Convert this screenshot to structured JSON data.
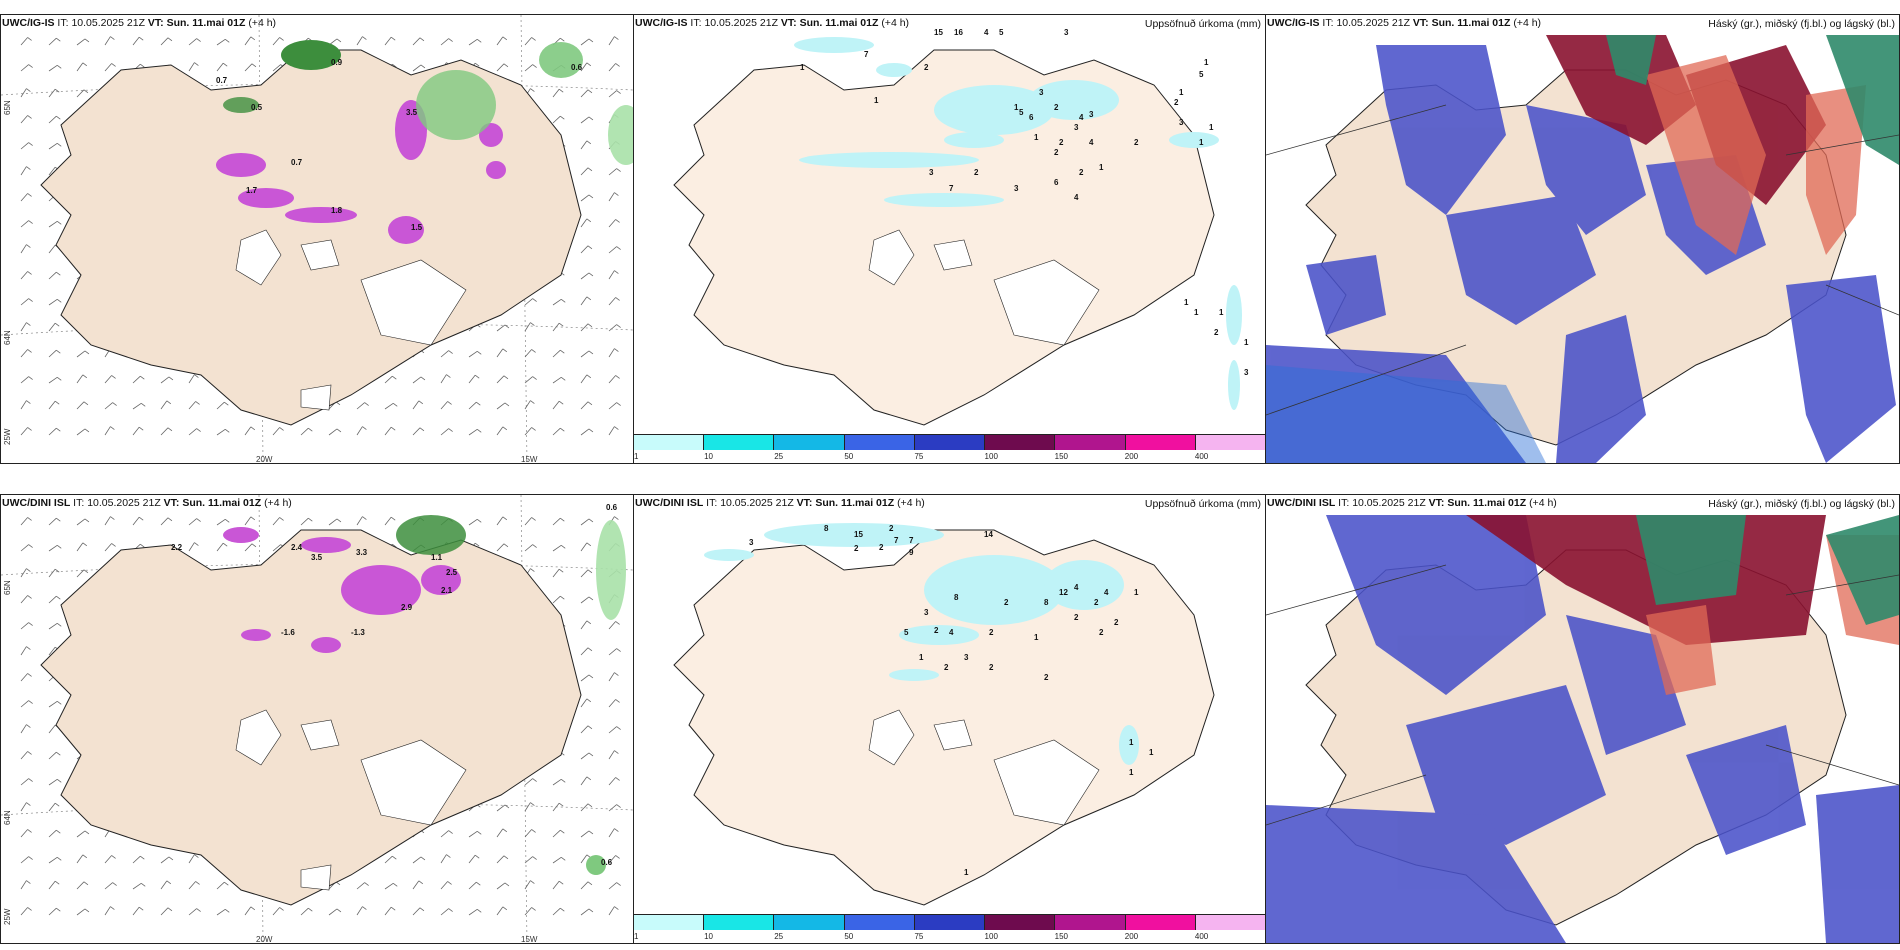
{
  "panels": [
    {
      "model": "UWC/IG-IS",
      "it_label": "IT:",
      "it_value": "10.05.2025 21Z",
      "vt_label": "VT:",
      "vt_value": "Sun. 11.mai 01Z",
      "offset": "(+4 h)",
      "right_title": "",
      "coords": {
        "lon1": "20W",
        "lon2": "15W",
        "lat1": "65N",
        "lat2": "64N",
        "lat3": "25W"
      },
      "labels": [
        "0.9",
        "0.7",
        "0.6",
        "0.5",
        "0.7",
        "3.5",
        "1.8",
        "1.5",
        "1.7"
      ]
    },
    {
      "model": "UWC/IG-IS",
      "it_label": "IT:",
      "it_value": "10.05.2025 21Z",
      "vt_label": "VT:",
      "vt_value": "Sun. 11.mai 01Z",
      "offset": "(+4 h)",
      "right_title": "Uppsöfnuð úrkoma (mm)",
      "colorbar_ticks": [
        "1",
        "10",
        "25",
        "50",
        "75",
        "100",
        "150",
        "200",
        "400"
      ],
      "labels": [
        "1",
        "7",
        "1",
        "15",
        "16",
        "4",
        "5",
        "3",
        "2",
        "6",
        "3",
        "2",
        "5",
        "3",
        "2",
        "2",
        "4",
        "4",
        "3",
        "2",
        "4",
        "6",
        "3",
        "2",
        "7",
        "3",
        "1",
        "1",
        "2",
        "1",
        "3",
        "1",
        "1",
        "2",
        "1",
        "1",
        "5",
        "1",
        "2",
        "1",
        "3",
        "1",
        "1"
      ]
    },
    {
      "model": "UWC/IG-IS",
      "it_label": "IT:",
      "it_value": "10.05.2025 21Z",
      "vt_label": "VT:",
      "vt_value": "Sun. 11.mai 01Z",
      "offset": "(+4 h)",
      "right_title": "Háský (gr.), miðský (fj.bl.) og lágský (bl.)"
    },
    {
      "model": "UWC/DINI ISL",
      "it_label": "IT:",
      "it_value": "10.05.2025 21Z",
      "vt_label": "VT:",
      "vt_value": "Sun. 11.mai 01Z",
      "offset": "(+4 h)",
      "right_title": "",
      "coords": {
        "lon1": "20W",
        "lon2": "15W",
        "lat1": "65N",
        "lat2": "64N",
        "lat3": "25W"
      },
      "labels": [
        "0.6",
        "2.2",
        "2.4",
        "3.5",
        "3.3",
        "1.1",
        "2.5",
        "2.1",
        "2.9",
        "-1.6",
        "-1.3",
        "0.6"
      ]
    },
    {
      "model": "UWC/DINI ISL",
      "it_label": "IT:",
      "it_value": "10.05.2025 21Z",
      "vt_label": "VT:",
      "vt_value": "Sun. 11.mai 01Z",
      "offset": "(+4 h)",
      "right_title": "Uppsöfnuð úrkoma (mm)",
      "colorbar_ticks": [
        "1",
        "10",
        "25",
        "50",
        "75",
        "100",
        "150",
        "200",
        "400"
      ],
      "labels": [
        "3",
        "8",
        "15",
        "2",
        "14",
        "7",
        "7",
        "2",
        "2",
        "9",
        "8",
        "2",
        "8",
        "12",
        "4",
        "4",
        "3",
        "2",
        "4",
        "5",
        "1",
        "2",
        "3",
        "2",
        "1",
        "2",
        "2",
        "2",
        "2",
        "1",
        "2",
        "2",
        "1",
        "1",
        "1",
        "1"
      ]
    },
    {
      "model": "UWC/DINI ISL",
      "it_label": "IT:",
      "it_value": "10.05.2025 21Z",
      "vt_label": "VT:",
      "vt_value": "Sun. 11.mai 01Z",
      "offset": "(+4 h)",
      "right_title": "Háský (gr.), miðský (fj.bl.) og lágský (bl.)"
    }
  ],
  "colors": {
    "land": "#f3e2d1",
    "land_light": "#fbeee2",
    "coast": "#222222",
    "green": "#7fc97f",
    "purple": "#c956d6",
    "cyan_light": "#bff3f7",
    "colorbar": [
      "#c8fbfb",
      "#19e6e6",
      "#14b8e6",
      "#3a64e6",
      "#2b3cc2",
      "#6e0b4e",
      "#b0158e",
      "#f0109f",
      "#f5b4f0"
    ],
    "high_cloud": "#2f8a6a",
    "mid_cloud": "#8a1230",
    "low_cloud": "#4a52c9",
    "sea_band": "#2b6ed8"
  }
}
